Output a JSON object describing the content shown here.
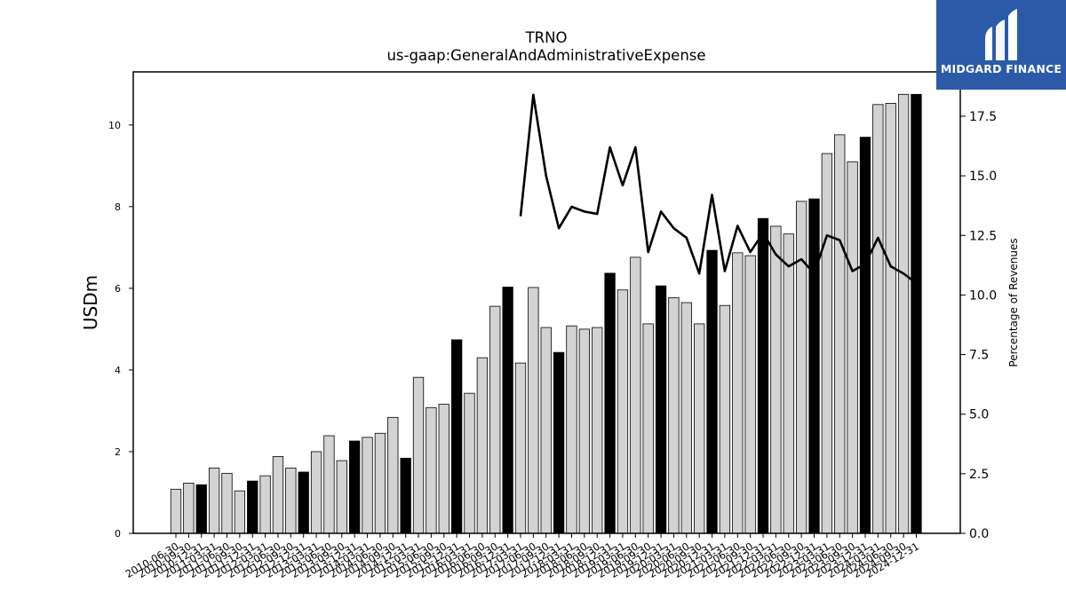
{
  "brand": {
    "name": "MIDGARD FINANCE",
    "color": "#2b5aa8"
  },
  "chart_data": {
    "type": "bar",
    "title": "TRNO",
    "subtitle": "us-gaap:GeneralAndAdministrativeExpense",
    "ylabel": "USDm",
    "y2label": "Percentage of Revenues",
    "ylim": [
      0,
      11.3
    ],
    "y2lim": [
      0,
      19.36
    ],
    "yticks": [
      0,
      2,
      4,
      6,
      8,
      10
    ],
    "y2ticks": [
      "0.0",
      "2.5",
      "5.0",
      "7.5",
      "10.0",
      "12.5",
      "15.0",
      "17.5"
    ],
    "colors": {
      "quarter_bar": "#d3d3d3",
      "annual_bar": "#000000",
      "line": "#000000"
    },
    "categories": [
      "2010-06-30",
      "2010-09-30",
      "2010-12-31",
      "2011-03-31",
      "2011-06-30",
      "2011-09-30",
      "2011-12-31",
      "2012-03-31",
      "2012-06-30",
      "2012-09-30",
      "2012-12-31",
      "2013-03-31",
      "2013-06-30",
      "2013-09-30",
      "2013-12-31",
      "2014-03-31",
      "2014-06-30",
      "2014-09-30",
      "2014-12-31",
      "2015-03-31",
      "2015-06-30",
      "2015-09-30",
      "2015-12-31",
      "2016-03-31",
      "2016-06-30",
      "2016-09-30",
      "2016-12-31",
      "2017-03-31",
      "2017-06-30",
      "2017-09-30",
      "2017-12-31",
      "2018-03-31",
      "2018-06-30",
      "2018-09-30",
      "2018-12-31",
      "2019-03-31",
      "2019-06-30",
      "2019-09-30",
      "2019-12-31",
      "2020-03-31",
      "2020-06-30",
      "2020-09-30",
      "2020-12-31",
      "2021-03-31",
      "2021-06-30",
      "2021-09-30",
      "2021-12-31",
      "2022-03-31",
      "2022-06-30",
      "2022-09-30",
      "2022-12-31",
      "2023-03-31",
      "2023-06-30",
      "2023-09-30",
      "2023-12-31",
      "2024-03-31",
      "2024-06-30",
      "2024-09-30",
      "2024-12-31"
    ],
    "series": [
      {
        "name": "General and administrative expense (quarterly)",
        "axis": "left",
        "kind": "bar",
        "values": [
          1.08,
          1.23,
          1.19,
          1.6,
          1.47,
          1.04,
          1.28,
          1.41,
          1.88,
          1.6,
          1.5,
          2.0,
          2.39,
          1.78,
          2.26,
          2.35,
          2.45,
          2.84,
          1.84,
          3.82,
          3.08,
          3.16,
          4.74,
          3.43,
          4.3,
          5.56,
          6.03,
          4.17,
          6.02,
          5.04,
          4.43,
          5.08,
          5.0,
          5.04,
          6.37,
          5.96,
          6.76,
          5.13,
          6.06,
          5.77,
          5.65,
          5.13,
          6.93,
          5.58,
          6.87,
          6.8,
          7.71,
          7.52,
          7.33,
          8.13,
          8.19,
          9.3,
          9.76,
          9.1,
          9.7,
          10.5,
          10.53,
          10.75,
          10.75
        ],
        "annual_flags": [
          0,
          0,
          1,
          0,
          0,
          0,
          1,
          0,
          0,
          0,
          1,
          0,
          0,
          0,
          1,
          0,
          0,
          0,
          1,
          0,
          0,
          0,
          1,
          0,
          0,
          0,
          1,
          0,
          0,
          0,
          1,
          0,
          0,
          0,
          1,
          0,
          0,
          0,
          1,
          0,
          0,
          0,
          1,
          0,
          0,
          0,
          1,
          0,
          0,
          0,
          1,
          0,
          0,
          0,
          1,
          0,
          0,
          0,
          1
        ]
      },
      {
        "name": "Percentage of revenues",
        "axis": "right",
        "kind": "line",
        "values": [
          null,
          null,
          null,
          null,
          null,
          null,
          null,
          null,
          null,
          null,
          null,
          null,
          null,
          null,
          null,
          null,
          null,
          null,
          null,
          null,
          null,
          null,
          null,
          null,
          null,
          null,
          null,
          13.3,
          18.4,
          15.0,
          12.8,
          13.7,
          13.5,
          13.4,
          16.2,
          14.6,
          16.2,
          11.8,
          13.5,
          12.8,
          12.4,
          10.9,
          14.2,
          11.0,
          12.9,
          11.8,
          12.6,
          11.7,
          11.2,
          11.5,
          10.9,
          12.5,
          12.3,
          11.0,
          11.3,
          12.4,
          11.2,
          10.9,
          10.5
        ]
      }
    ]
  }
}
